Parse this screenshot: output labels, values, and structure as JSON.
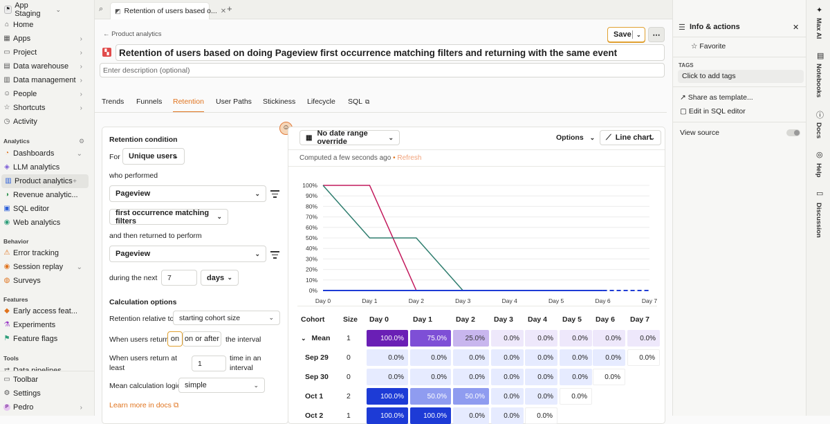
{
  "project": {
    "name": "App Staging"
  },
  "nav": {
    "items": [
      {
        "label": "Home",
        "icon": "home-icon"
      },
      {
        "label": "Apps",
        "icon": "apps-icon"
      },
      {
        "label": "Project",
        "icon": "folder-icon"
      },
      {
        "label": "Data warehouse",
        "icon": "database-icon"
      },
      {
        "label": "Data management",
        "icon": "table-icon"
      },
      {
        "label": "People",
        "icon": "people-icon"
      },
      {
        "label": "Shortcuts",
        "icon": "star-icon"
      },
      {
        "label": "Activity",
        "icon": "clock-icon"
      }
    ],
    "analytics_header": "Analytics",
    "analytics": [
      {
        "label": "Dashboards"
      },
      {
        "label": "LLM analytics"
      },
      {
        "label": "Product analytics"
      },
      {
        "label": "Revenue analytic..."
      },
      {
        "label": "SQL editor"
      },
      {
        "label": "Web analytics"
      }
    ],
    "behavior_header": "Behavior",
    "behavior": [
      {
        "label": "Error tracking"
      },
      {
        "label": "Session replay"
      },
      {
        "label": "Surveys"
      }
    ],
    "features_header": "Features",
    "features": [
      {
        "label": "Early access feat..."
      },
      {
        "label": "Experiments"
      },
      {
        "label": "Feature flags"
      }
    ],
    "tools_header": "Tools",
    "tools": [
      {
        "label": "Data pipelines"
      }
    ],
    "bottom": [
      {
        "label": "Toolbar"
      },
      {
        "label": "Settings"
      },
      {
        "label": "Pedro",
        "avatar": "P"
      }
    ]
  },
  "tabbar": {
    "tab_title": "Retention of users based o...",
    "add": "+"
  },
  "header": {
    "breadcrumb": "Product analytics",
    "title": "Retention of users based on doing Pageview first occurrence matching filters and returning with the same event",
    "description_placeholder": "Enter description (optional)",
    "save_label": "Save",
    "more": "⋯"
  },
  "insight_tabs": [
    "Trends",
    "Funnels",
    "Retention",
    "User Paths",
    "Stickiness",
    "Lifecycle",
    "SQL"
  ],
  "active_tab": "Retention",
  "editor": {
    "retention_condition": "Retention condition",
    "for_label": "For",
    "for_value": "Unique users",
    "who_performed": "who performed",
    "event1": "Pageview",
    "occurrence": "first occurrence matching filters",
    "returned_label": "and then returned to perform",
    "event2": "Pageview",
    "during_label": "during the next",
    "period_count": "7",
    "period_unit": "days",
    "calc_options": "Calculation options",
    "relative_label": "Retention relative to",
    "relative_value": "starting cohort size",
    "when_return_label": "When users return",
    "on_label": "on",
    "on_or_after_label": "on or after",
    "interval_label": "the interval",
    "atleast_label_1": "When users return at",
    "atleast_label_2": "least",
    "atleast_value": "1",
    "time_interval_1": "time in an",
    "time_interval_2": "interval",
    "mean_label": "Mean calculation logic",
    "mean_value": "simple",
    "learn_more": "Learn more in docs"
  },
  "results": {
    "date_range": "No date range override",
    "options": "Options",
    "chart_type": "Line chart",
    "computed": "Computed a few seconds ago",
    "refresh": "Refresh"
  },
  "chart_data": {
    "type": "line",
    "categories": [
      "Day 0",
      "Day 1",
      "Day 2",
      "Day 3",
      "Day 4",
      "Day 5",
      "Day 6",
      "Day 7"
    ],
    "yticks": [
      "100%",
      "90%",
      "80%",
      "70%",
      "60%",
      "50%",
      "40%",
      "30%",
      "20%",
      "10%",
      "0%"
    ],
    "ylim": [
      0,
      100
    ],
    "series": [
      {
        "color": "#c2185b",
        "values": [
          100,
          100,
          0,
          null,
          null,
          null,
          null,
          null
        ]
      },
      {
        "color": "#2e7d6e",
        "values": [
          100,
          50,
          50,
          0,
          null,
          null,
          null,
          null
        ]
      },
      {
        "color": "#1d3bd6",
        "values": [
          0,
          0,
          0,
          0,
          0,
          0,
          0,
          null
        ],
        "dashed_tail": [
          0,
          0
        ]
      }
    ],
    "grid": true
  },
  "table": {
    "headers": [
      "Cohort",
      "Size",
      "Day 0",
      "Day 1",
      "Day 2",
      "Day 3",
      "Day 4",
      "Day 5",
      "Day 6",
      "Day 7"
    ],
    "rows": [
      {
        "cohort": "Mean",
        "size": "1",
        "values": [
          "100.0%",
          "75.0%",
          "25.0%",
          "0.0%",
          "0.0%",
          "0.0%",
          "0.0%",
          "0.0%"
        ]
      },
      {
        "cohort": "Sep 29",
        "size": "0",
        "values": [
          "0.0%",
          "0.0%",
          "0.0%",
          "0.0%",
          "0.0%",
          "0.0%",
          "0.0%",
          "0.0%"
        ]
      },
      {
        "cohort": "Sep 30",
        "size": "0",
        "values": [
          "0.0%",
          "0.0%",
          "0.0%",
          "0.0%",
          "0.0%",
          "0.0%",
          "0.0%"
        ]
      },
      {
        "cohort": "Oct 1",
        "size": "2",
        "values": [
          "100.0%",
          "50.0%",
          "50.0%",
          "0.0%",
          "0.0%",
          "0.0%"
        ]
      },
      {
        "cohort": "Oct 2",
        "size": "1",
        "values": [
          "100.0%",
          "100.0%",
          "0.0%",
          "0.0%",
          "0.0%"
        ]
      }
    ]
  },
  "panel": {
    "title": "Info & actions",
    "favorite": "Favorite",
    "tags_header": "TAGS",
    "tags_placeholder": "Click to add tags",
    "share_template": "Share as template...",
    "edit_sql": "Edit in SQL editor",
    "view_source": "View source"
  },
  "strip": [
    "Max AI",
    "Notebooks",
    "Docs",
    "Help",
    "Discussion"
  ]
}
